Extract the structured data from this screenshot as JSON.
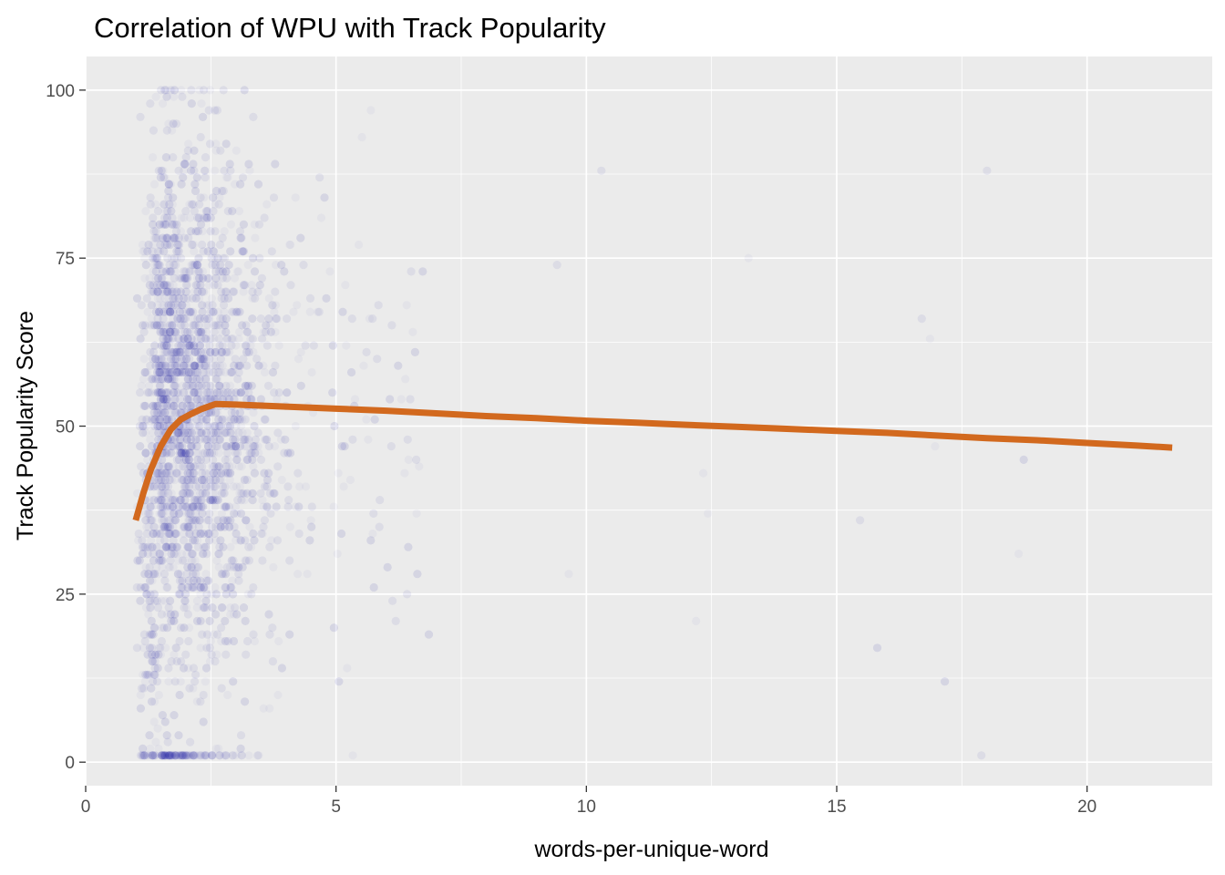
{
  "chart_data": {
    "type": "scatter",
    "title": "Correlation of WPU with Track Popularity",
    "xlabel": "words-per-unique-word",
    "ylabel": "Track Popularity Score",
    "xlim": [
      0,
      22.5
    ],
    "ylim": [
      -3.5,
      105
    ],
    "x_ticks": [
      0,
      5,
      10,
      15,
      20
    ],
    "y_ticks": [
      0,
      25,
      50,
      75,
      100
    ],
    "grid": true,
    "legend": "none",
    "background_color": "#ebebeb",
    "point_color": "#2a1fa3",
    "point_alpha": 0.035,
    "point_note": "dense cloud of several thousand semi-transparent points, concentrated at x 1-4, y 1-100",
    "smooth_color": "#d2691e",
    "series": [
      {
        "type": "line",
        "x": [
          1.0,
          1.15,
          1.3,
          1.5,
          1.7,
          1.9,
          2.1,
          2.3,
          2.6,
          3.0,
          4.0,
          5.0,
          6.0,
          7.0,
          8.0,
          9.0,
          10.0,
          11.0,
          12.0,
          13.0,
          14.0,
          15.0,
          16.0,
          17.0,
          18.0,
          19.0,
          20.0,
          21.0,
          21.7
        ],
        "y": [
          36.0,
          40.0,
          43.5,
          47.0,
          49.5,
          51.0,
          51.8,
          52.5,
          53.3,
          53.2,
          52.9,
          52.6,
          52.3,
          51.9,
          51.5,
          51.2,
          50.8,
          50.5,
          50.2,
          49.9,
          49.6,
          49.3,
          49.0,
          48.6,
          48.2,
          47.9,
          47.5,
          47.1,
          46.8
        ]
      }
    ]
  }
}
